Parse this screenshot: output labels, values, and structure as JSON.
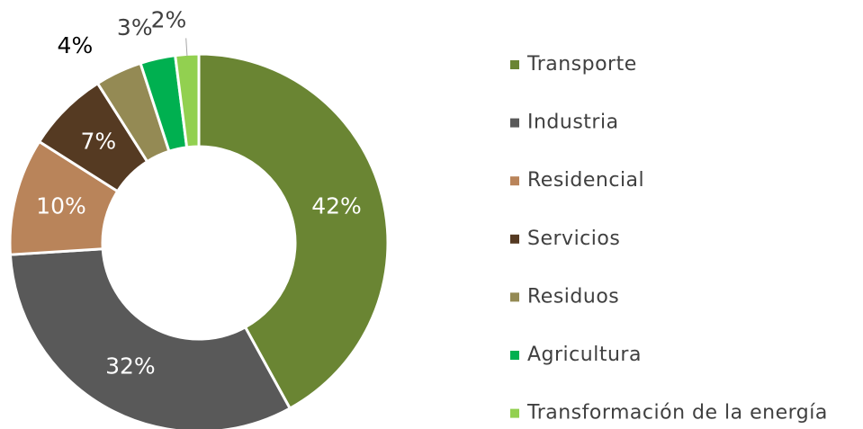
{
  "chart_data": {
    "type": "donut",
    "categories": [
      "Transporte",
      "Industria",
      "Residencial",
      "Servicios",
      "Residuos",
      "Agricultura",
      "Transformación de la energía"
    ],
    "values": [
      42,
      32,
      10,
      7,
      4,
      3,
      2
    ],
    "value_labels": [
      "42%",
      "32%",
      "10%",
      "7%",
      "4%",
      "3%",
      "2%"
    ],
    "colors": [
      "#6a8533",
      "#595959",
      "#b9845a",
      "#553a22",
      "#948a54",
      "#00b050",
      "#92d050"
    ],
    "legend": "right"
  }
}
